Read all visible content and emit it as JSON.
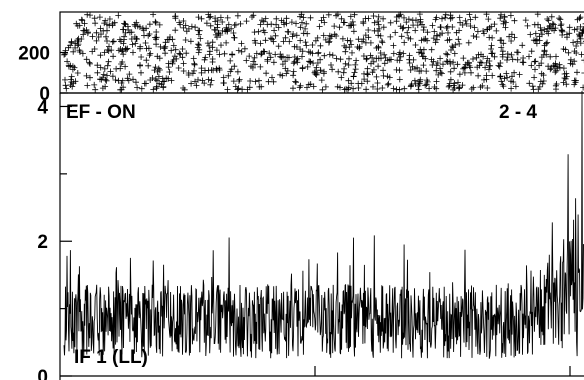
{
  "chart_data": [
    {
      "type": "scatter",
      "marker": "plus",
      "ylim": [
        0,
        400
      ],
      "y_ticks": [
        {
          "value": 0,
          "label": "0"
        },
        {
          "value": 200,
          "label": "200"
        }
      ],
      "point_count": 1100,
      "note_points": "dense uniform cloud of plus markers spanning full width and y 0-400"
    },
    {
      "type": "line",
      "ylim": [
        0,
        4.2
      ],
      "y_ticks": [
        {
          "value": 0,
          "label": "0"
        },
        {
          "value": 2,
          "label": "2"
        },
        {
          "value": 4,
          "label": "4"
        }
      ],
      "minor_ticks": [
        1,
        3
      ],
      "annotations": {
        "top_left": "EF - ON",
        "top_right": "2 - 4",
        "bottom_left": "IF 1 (LL)"
      },
      "baseline": 0.75,
      "noise_amplitude": 0.55,
      "end_rise": 1.6,
      "sample_count": 1050
    }
  ]
}
